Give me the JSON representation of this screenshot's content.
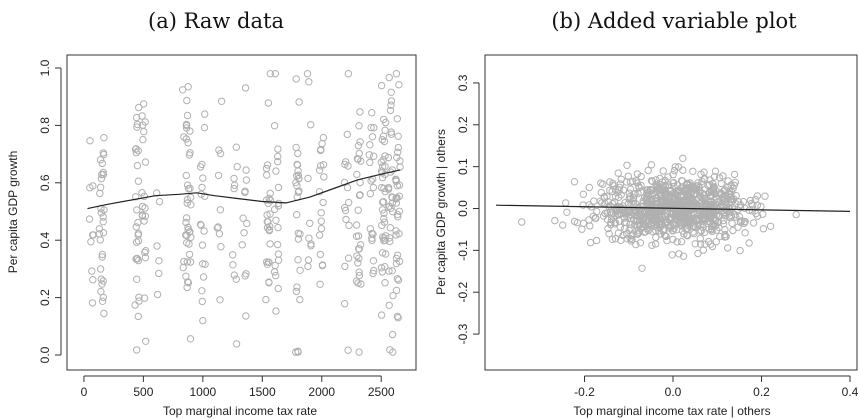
{
  "chart_data": [
    {
      "type": "scatter",
      "title": "(a) Raw data",
      "xlabel": "Top marginal income tax rate",
      "ylabel": "Per capita GDP growth",
      "xlim": [
        -50,
        2700
      ],
      "ylim": [
        0,
        1.0
      ],
      "xticks": [
        0,
        500,
        1000,
        1500,
        2000,
        2500
      ],
      "yticks": [
        0.0,
        0.2,
        0.4,
        0.6,
        0.8,
        1.0
      ],
      "point_color": "#b0b0b0",
      "line_color": "#222222",
      "fit_line": {
        "x": [
          30,
          200,
          400,
          600,
          800,
          950,
          1100,
          1300,
          1500,
          1700,
          1900,
          2100,
          2300,
          2500,
          2660
        ],
        "y": [
          0.51,
          0.525,
          0.54,
          0.555,
          0.56,
          0.565,
          0.555,
          0.545,
          0.535,
          0.53,
          0.55,
          0.58,
          0.61,
          0.63,
          0.645
        ]
      },
      "point_columns": [
        {
          "x": 60,
          "n": 10
        },
        {
          "x": 150,
          "n": 30
        },
        {
          "x": 450,
          "n": 28
        },
        {
          "x": 500,
          "n": 20
        },
        {
          "x": 630,
          "n": 6
        },
        {
          "x": 850,
          "n": 12
        },
        {
          "x": 880,
          "n": 30
        },
        {
          "x": 1000,
          "n": 18
        },
        {
          "x": 1140,
          "n": 10
        },
        {
          "x": 1270,
          "n": 10
        },
        {
          "x": 1350,
          "n": 12
        },
        {
          "x": 1550,
          "n": 26
        },
        {
          "x": 1620,
          "n": 20
        },
        {
          "x": 1800,
          "n": 28
        },
        {
          "x": 1900,
          "n": 10
        },
        {
          "x": 2000,
          "n": 18
        },
        {
          "x": 2210,
          "n": 16
        },
        {
          "x": 2310,
          "n": 28
        },
        {
          "x": 2420,
          "n": 20
        },
        {
          "x": 2520,
          "n": 38
        },
        {
          "x": 2580,
          "n": 30
        },
        {
          "x": 2640,
          "n": 34
        }
      ]
    },
    {
      "type": "scatter",
      "title": "(b) Added variable plot",
      "xlabel": "Top marginal income tax rate | others",
      "ylabel": "Per capita GDP growth | others",
      "xlim": [
        -0.4,
        0.4
      ],
      "ylim": [
        -0.35,
        0.35
      ],
      "xticks": [
        -0.2,
        0.0,
        0.2,
        0.4
      ],
      "yticks": [
        -0.3,
        -0.2,
        -0.1,
        0.0,
        0.1,
        0.2,
        0.3
      ],
      "point_color": "#b0b0b0",
      "line_color": "#222222",
      "fit_line": {
        "x": [
          -0.4,
          0.4
        ],
        "y": [
          0.008,
          -0.007
        ]
      },
      "point_count": 900
    }
  ]
}
